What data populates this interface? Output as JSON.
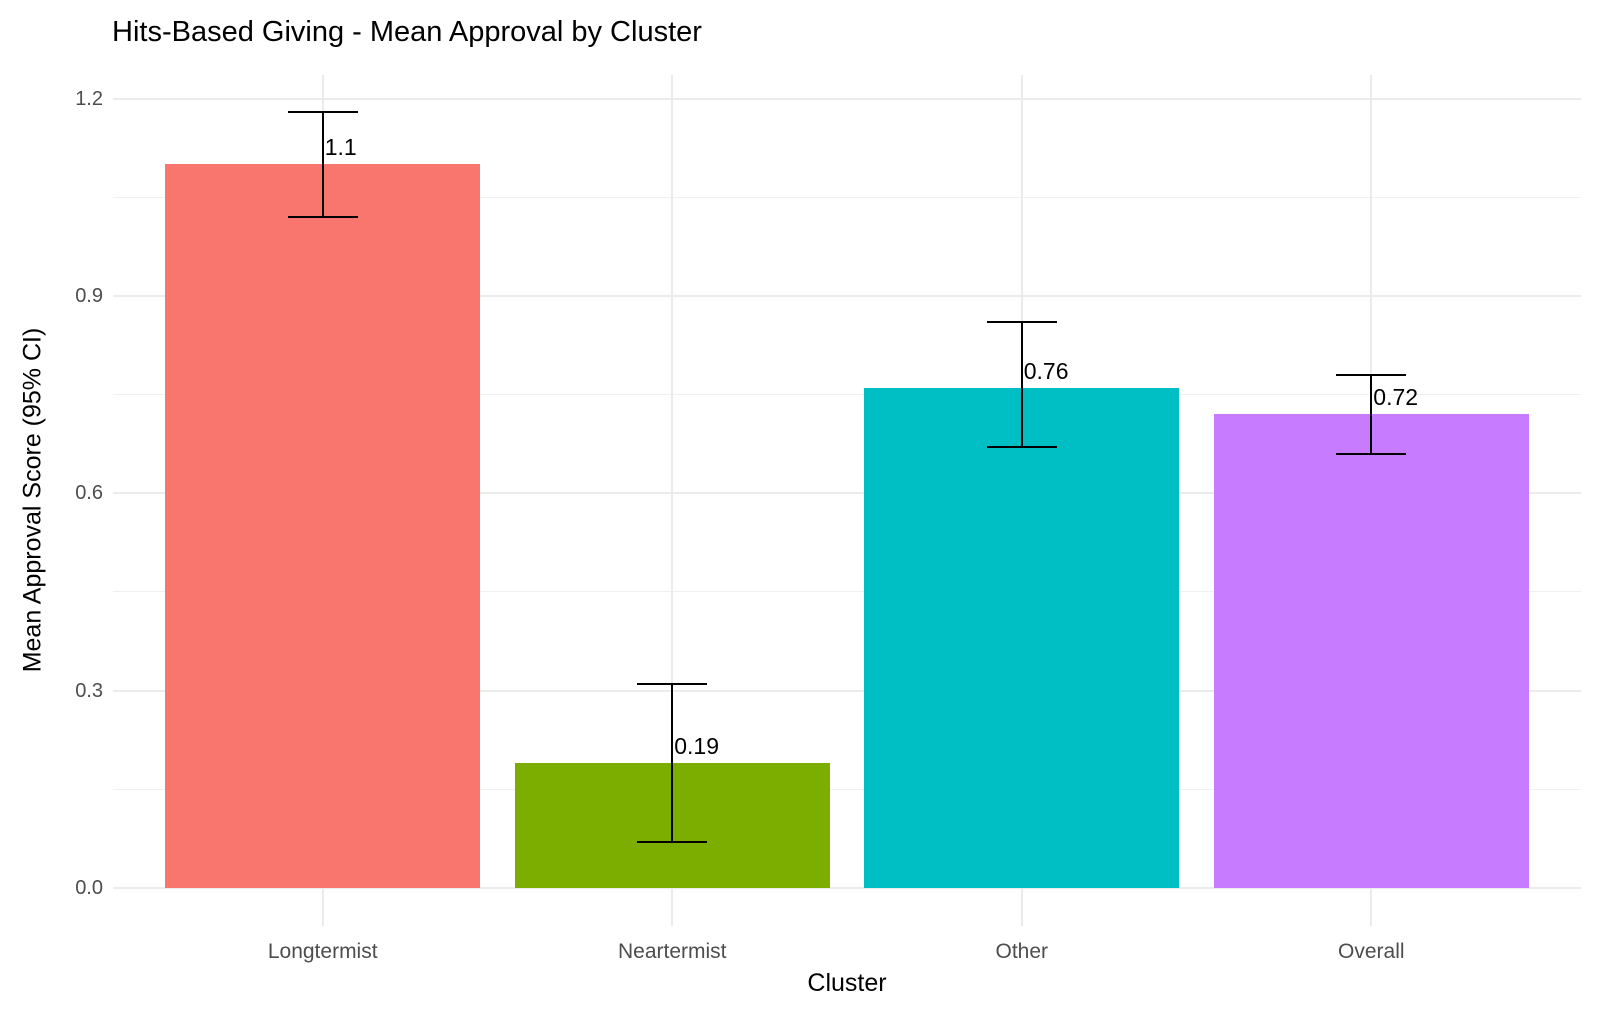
{
  "chart_data": {
    "type": "bar",
    "title": "Hits-Based Giving - Mean Approval by Cluster",
    "xlabel": "Cluster",
    "ylabel": "Mean Approval Score (95% CI)",
    "categories": [
      "Longtermist",
      "Neartermist",
      "Other",
      "Overall"
    ],
    "values": [
      1.1,
      0.19,
      0.76,
      0.72
    ],
    "value_labels": [
      "1.1",
      "0.19",
      "0.76",
      "0.72"
    ],
    "ci_lower": [
      1.02,
      0.07,
      0.67,
      0.66
    ],
    "ci_upper": [
      1.18,
      0.31,
      0.86,
      0.78
    ],
    "bar_colors": [
      "#F8766D",
      "#7CAE00",
      "#00BFC4",
      "#C77CFF"
    ],
    "y_tick_values": [
      0.0,
      0.3,
      0.6,
      0.9,
      1.2
    ],
    "y_tick_labels": [
      "0.0",
      "0.3",
      "0.6",
      "0.9",
      "1.2"
    ],
    "y_minor_values": [
      0.15,
      0.45,
      0.75,
      1.05
    ],
    "ylim": [
      -0.058,
      1.236
    ],
    "grid": true,
    "legend": "none",
    "colors": {
      "background": "#FFFFFF",
      "grid_major": "#EBEBEB",
      "grid_minor": "#F0F0F0",
      "tick_label": "#4D4D4D",
      "text": "#000000",
      "error_bar": "#000000"
    }
  }
}
